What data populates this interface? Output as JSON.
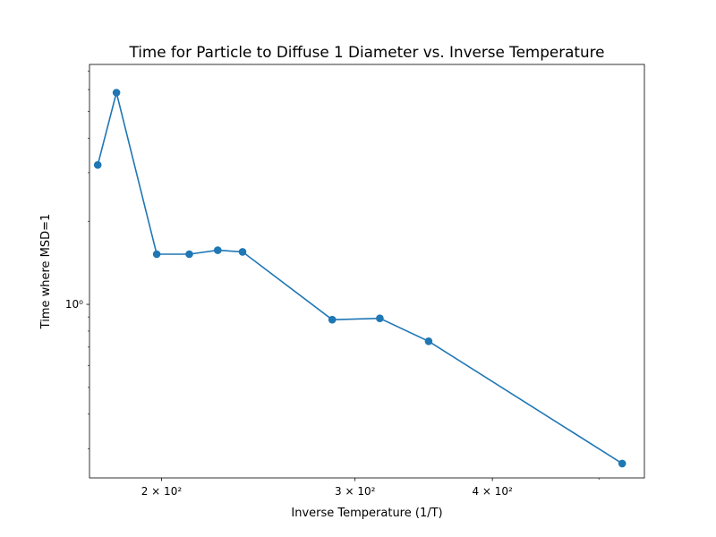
{
  "chart_data": {
    "type": "line",
    "title": "Time for Particle to Diffuse 1 Diameter vs. Inverse Temperature",
    "xlabel": "Inverse Temperature (1/T)",
    "ylabel": "Time where MSD=1",
    "xscale": "log",
    "yscale": "log",
    "xlim": [
      172,
      550
    ],
    "ylim": [
      0.235,
      7.4
    ],
    "grid": false,
    "x_ticks": [
      {
        "value": 200,
        "label": "2 × 10²"
      },
      {
        "value": 300,
        "label": "3 × 10²"
      },
      {
        "value": 400,
        "label": "4 × 10²"
      }
    ],
    "y_ticks": [
      {
        "value": 1,
        "label": "10⁰"
      }
    ],
    "line_color": "#1f77b4",
    "series": [
      {
        "name": "",
        "x": [
          175,
          182,
          198,
          212,
          225,
          237,
          286,
          316,
          350,
          525
        ],
        "y": [
          3.2,
          5.85,
          1.52,
          1.52,
          1.57,
          1.55,
          0.88,
          0.89,
          0.735,
          0.265
        ]
      }
    ]
  }
}
